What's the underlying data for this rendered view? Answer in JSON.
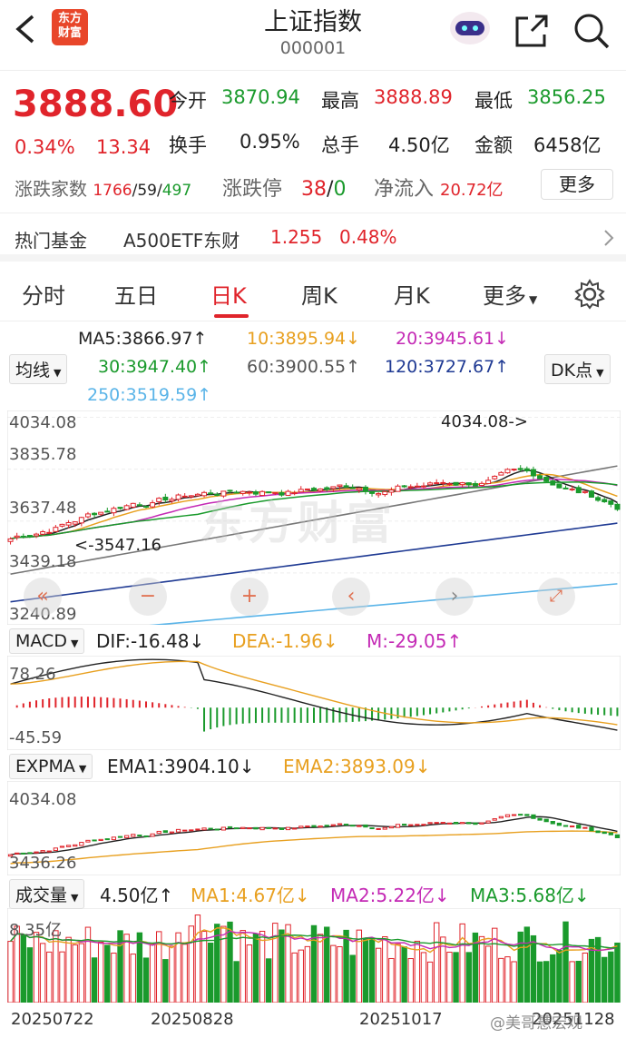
{
  "header": {
    "logo_text": "东方财富",
    "title": "上证指数",
    "code": "000001",
    "icons": [
      "back-arrow-icon",
      "robot-assistant-icon",
      "share-icon",
      "search-icon"
    ]
  },
  "quote": {
    "price": "3888.60",
    "change_pct": "0.34%",
    "change_amt": "13.34",
    "open_label": "今开",
    "open": "3870.94",
    "high_label": "最高",
    "high": "3888.89",
    "low_label": "最低",
    "low": "3856.25",
    "turnover_label": "换手",
    "turnover": "0.95%",
    "volume_label": "总手",
    "volume": "4.50亿",
    "amount_label": "金额",
    "amount": "6458亿",
    "breadth_label": "涨跌家数",
    "breadth_up": "1766",
    "breadth_flat": "59",
    "breadth_down": "497",
    "limit_label": "涨跌停",
    "limit_up": "38",
    "limit_down": "0",
    "netflow_label": "净流入",
    "netflow": "20.72亿",
    "more_button": "更多"
  },
  "fund": {
    "label": "热门基金",
    "name": "A500ETF东财",
    "price": "1.255",
    "pct": "0.48%"
  },
  "tabs": [
    "分时",
    "五日",
    "日K",
    "周K",
    "月K",
    "更多"
  ],
  "active_tab": "日K",
  "ma": {
    "selector": "均线",
    "ma5": "MA5:3866.97↑",
    "ma10": "10:3895.94↓",
    "ma20": "20:3945.61↓",
    "ma30": "30:3947.40↑",
    "ma60": "60:3900.55↑",
    "ma120": "120:3727.67↑",
    "ma250": "250:3519.59↑",
    "dk_button": "DK点",
    "colors": {
      "ma5": "#222222",
      "ma10": "#e8a020",
      "ma20": "#c42ab5",
      "ma30": "#1a9a2c",
      "ma60": "#777777",
      "ma120": "#1f3a93",
      "ma250": "#5ab4e8"
    }
  },
  "kchart": {
    "y_labels": [
      "4034.08",
      "3835.78",
      "3637.48",
      "3439.18",
      "3240.89"
    ],
    "high_marker": "4034.08->",
    "low_marker": "<-3547.16",
    "watermark": "东方财富",
    "buttons": [
      "double-left-icon",
      "zoom-out-icon",
      "zoom-in-icon",
      "left-icon",
      "right-icon",
      "fullscreen-icon"
    ]
  },
  "macd": {
    "selector": "MACD",
    "dif": "DIF:-16.48↓",
    "dea": "DEA:-1.96↓",
    "m": "M:-29.05↑",
    "y_top": "78.26",
    "y_bottom": "-45.59"
  },
  "expma": {
    "selector": "EXPMA",
    "ema1": "EMA1:3904.10↓",
    "ema2": "EMA2:3893.09↓",
    "y_top": "4034.08",
    "y_bottom": "3436.26"
  },
  "volume": {
    "selector": "成交量",
    "value": "4.50亿↑",
    "ma1": "MA1:4.67亿↓",
    "ma2": "MA2:5.22亿↓",
    "ma3": "MA3:5.68亿↓",
    "y_top": "8.35亿"
  },
  "dates": [
    "20250722",
    "20250828",
    "20251017",
    "20251128"
  ],
  "watermark_user": "@美哥慧宏观"
}
